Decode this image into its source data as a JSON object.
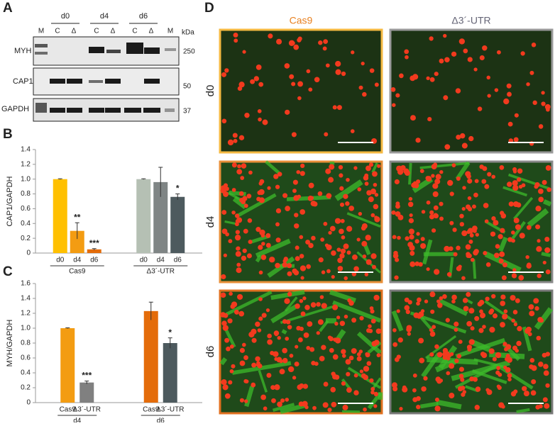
{
  "panels": {
    "A": {
      "label": "A",
      "timepoints": [
        "d0",
        "d4",
        "d6"
      ],
      "lanes": [
        "M",
        "C",
        "Δ",
        "C",
        "Δ",
        "C",
        "Δ",
        "M"
      ],
      "unit": "kDa",
      "proteins": [
        "MYH",
        "CAP1",
        "GAPDH"
      ],
      "markers": [
        250,
        50,
        37
      ]
    },
    "D": {
      "label": "D",
      "columns": [
        "Cas9",
        "Δ3´-UTR"
      ],
      "rows": [
        "d0",
        "d4",
        "d6"
      ]
    }
  },
  "chart_data": [
    {
      "type": "bar",
      "panel": "B",
      "y_label": "CAP1/GAPDH",
      "ylim": [
        0,
        1.4
      ],
      "yticks": [
        0,
        0.2,
        0.4,
        0.6,
        0.8,
        {
          "value": 1,
          "label": "1.0"
        },
        1.2,
        1.4
      ],
      "groups": [
        {
          "name": "Cas9",
          "categories": [
            "d0",
            "d4",
            "d6"
          ],
          "values": [
            1.0,
            0.3,
            0.05
          ],
          "errors": [
            0.005,
            0.11,
            0.01
          ],
          "colors": [
            "#ffc000",
            "#f39c12",
            "#e46c0a"
          ],
          "significance": [
            null,
            "**",
            "***"
          ]
        },
        {
          "name": "Δ3´-UTR",
          "categories": [
            "d0",
            "d4",
            "d6"
          ],
          "values": [
            1.0,
            0.96,
            0.76
          ],
          "errors": [
            0.005,
            0.2,
            0.04
          ],
          "colors": [
            "#b5c0b4",
            "#7f8585",
            "#4d5a5e"
          ],
          "significance": [
            null,
            null,
            "*"
          ]
        }
      ]
    },
    {
      "type": "bar",
      "panel": "C",
      "y_label": "MYH/GAPDH",
      "ylim": [
        0,
        1.6
      ],
      "yticks": [
        0,
        0.2,
        0.4,
        0.6,
        0.8,
        {
          "value": 1,
          "label": "1.0"
        },
        1.2,
        1.4,
        1.6
      ],
      "groups": [
        {
          "name": "d4",
          "categories": [
            "Cas9",
            "Δ3´-UTR"
          ],
          "values": [
            1.0,
            0.27
          ],
          "errors": [
            0.005,
            0.02
          ],
          "colors": [
            "#f39c12",
            "#808080"
          ],
          "significance": [
            null,
            "***"
          ]
        },
        {
          "name": "d6",
          "categories": [
            "Cas9",
            "Δ3´-UTR"
          ],
          "values": [
            1.23,
            0.8
          ],
          "errors": [
            0.12,
            0.07
          ],
          "colors": [
            "#e46c0a",
            "#4d5a5e"
          ],
          "significance": [
            null,
            "*"
          ]
        }
      ]
    }
  ]
}
